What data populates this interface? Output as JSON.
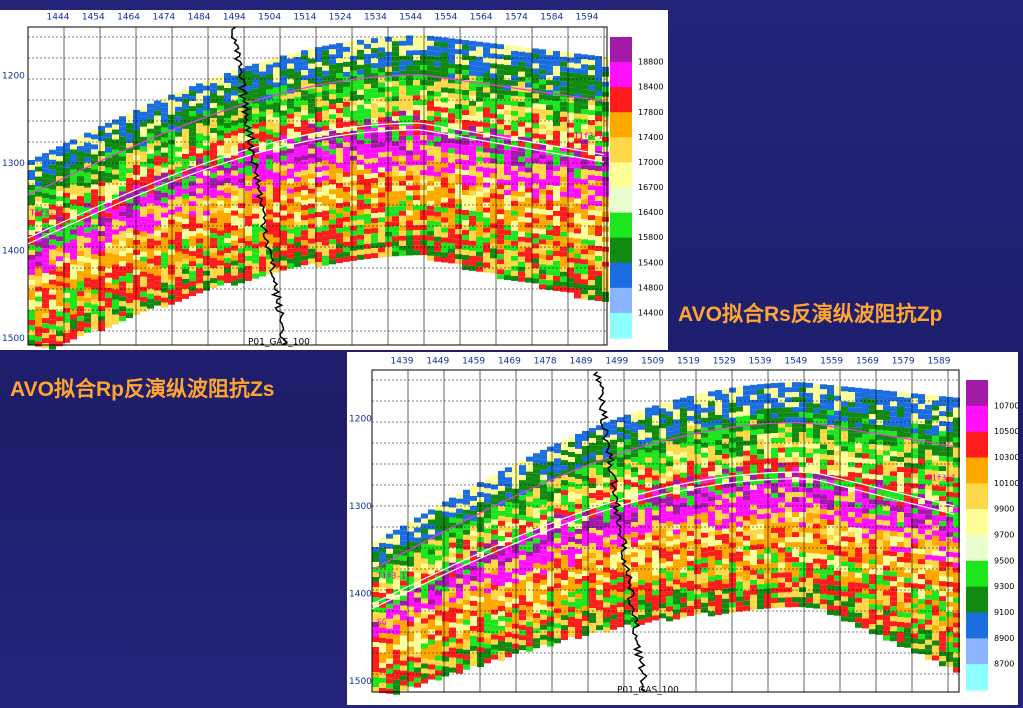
{
  "caption_top": "AVO拟合Rs反演纵波阻抗Zp",
  "caption_bottom": "AVO拟合Rp反演纵波阻抗Zs",
  "panels": [
    {
      "x_labels": [
        1444,
        1454,
        1464,
        1474,
        1484,
        1494,
        1504,
        1514,
        1524,
        1534,
        1544,
        1554,
        1564,
        1574,
        1584,
        1594
      ],
      "y_labels": [
        1200,
        1300,
        1400,
        1500
      ],
      "colorbar_labels": [
        18800,
        18400,
        17800,
        17400,
        17000,
        16700,
        16400,
        15800,
        15400,
        14800,
        14400
      ],
      "horizon_labels": [
        "T1f3-1",
        "T1f3-1",
        "SG"
      ],
      "well_label": "P01_GAS_100"
    },
    {
      "x_labels": [
        1439,
        1449,
        1459,
        1469,
        1478,
        1489,
        1499,
        1509,
        1519,
        1529,
        1539,
        1549,
        1559,
        1569,
        1579,
        1589
      ],
      "y_labels": [
        1200,
        1300,
        1400,
        1500
      ],
      "colorbar_labels": [
        10700,
        10500,
        10300,
        10100,
        9900,
        9700,
        9500,
        9300,
        9100,
        8900,
        8700
      ],
      "horizon_labels": [
        "T1f3-1",
        "SG",
        "T1f3-1",
        "SG"
      ],
      "well_label": "P01_GAS_100"
    }
  ]
}
